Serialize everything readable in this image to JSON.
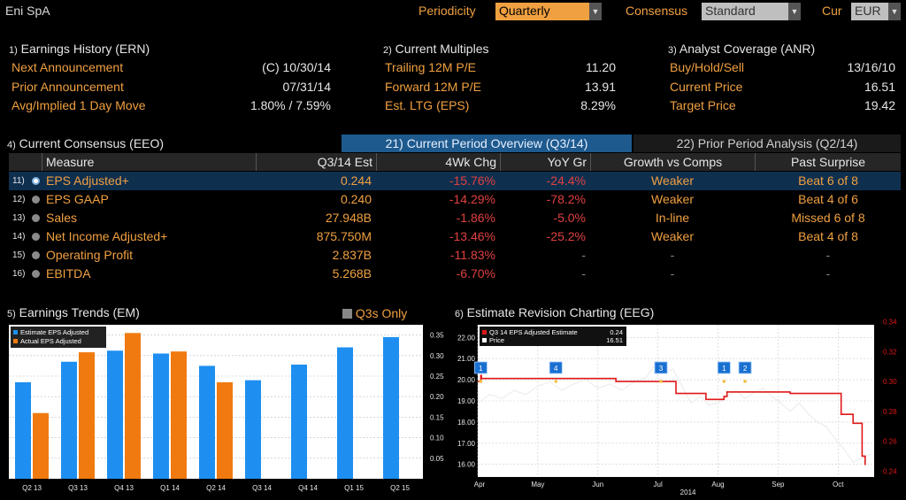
{
  "header": {
    "security": "Eni SpA",
    "periodicity_label": "Periodicity",
    "periodicity_value": "Quarterly",
    "consensus_label": "Consensus",
    "consensus_value": "Standard",
    "cur_label": "Cur",
    "cur_value": "EUR"
  },
  "earnings_history": {
    "num": "1)",
    "title": "Earnings History (ERN)",
    "rows": [
      {
        "label": "Next Announcement",
        "value": "(C)  10/30/14"
      },
      {
        "label": "Prior Announcement",
        "value": "07/31/14"
      },
      {
        "label": "Avg/Implied 1 Day Move",
        "value": "1.80% / 7.59%"
      }
    ]
  },
  "current_multiples": {
    "num": "2)",
    "title": "Current Multiples",
    "rows": [
      {
        "label": "Trailing 12M P/E",
        "value": "11.20"
      },
      {
        "label": "Forward 12M P/E",
        "value": "13.91"
      },
      {
        "label": "Est. LTG (EPS)",
        "value": "8.29%"
      }
    ]
  },
  "analyst_coverage": {
    "num": "3)",
    "title": "Analyst Coverage (ANR)",
    "rows": [
      {
        "label": "Buy/Hold/Sell",
        "value": "13/16/10"
      },
      {
        "label": "Current Price",
        "value": "16.51"
      },
      {
        "label": "Target Price",
        "value": "19.42"
      }
    ]
  },
  "consensus": {
    "num": "4)",
    "title": "Current Consensus (EEO)",
    "tab_active": "21) Current Period Overview (Q3/14)",
    "tab_inactive": "22) Prior Period Analysis (Q2/14)",
    "columns": [
      "Measure",
      "Q3/14 Est",
      "4Wk Chg",
      "YoY Gr",
      "Growth vs Comps",
      "Past Surprise"
    ],
    "rows": [
      {
        "num": "11)",
        "measure": "EPS Adjusted+",
        "est": "0.244",
        "chg": "-15.76%",
        "yoy": "-24.4%",
        "comp": "Weaker",
        "surprise": "Beat 6 of 8"
      },
      {
        "num": "12)",
        "measure": "EPS GAAP",
        "est": "0.240",
        "chg": "-14.29%",
        "yoy": "-78.2%",
        "comp": "Weaker",
        "surprise": "Beat 4 of 6"
      },
      {
        "num": "13)",
        "measure": "Sales",
        "est": "27.948B",
        "chg": "-1.86%",
        "yoy": "-5.0%",
        "comp": "In-line",
        "surprise": "Missed 6 of 8"
      },
      {
        "num": "14)",
        "measure": "Net Income Adjusted+",
        "est": "875.750M",
        "chg": "-13.46%",
        "yoy": "-25.2%",
        "comp": "Weaker",
        "surprise": "Beat 4 of 8"
      },
      {
        "num": "15)",
        "measure": "Operating Profit",
        "est": "2.837B",
        "chg": "-11.83%",
        "yoy": "-",
        "comp": "-",
        "surprise": "-"
      },
      {
        "num": "16)",
        "measure": "EBITDA",
        "est": "5.268B",
        "chg": "-6.70%",
        "yoy": "-",
        "comp": "-",
        "surprise": "-"
      }
    ]
  },
  "earnings_trends": {
    "num": "5)",
    "title": "Earnings Trends (EM)",
    "toggle_label": "Q3s Only"
  },
  "estimate_revision": {
    "num": "6)",
    "title": "Estimate Revision Charting (EEG)"
  },
  "colors": {
    "accent": "#f0a040",
    "negative": "#e04040",
    "estimate_bar": "#1e8ff0",
    "actual_bar": "#f07a10",
    "estimate_line": "#e01818",
    "price_line": "#ffffff",
    "marker": "#1a70d0"
  },
  "chart_data": [
    {
      "type": "bar",
      "categories": [
        "Q2 13",
        "Q3 13",
        "Q4 13",
        "Q1 14",
        "Q2 14",
        "Q3 14",
        "Q4 14",
        "Q1 15",
        "Q2 15"
      ],
      "series": [
        {
          "name": "Estimate EPS Adjusted",
          "values": [
            0.235,
            0.285,
            0.312,
            0.305,
            0.275,
            0.24,
            0.278,
            0.32,
            0.345
          ]
        },
        {
          "name": "Actual EPS Adjusted",
          "values": [
            0.16,
            0.308,
            0.355,
            0.31,
            0.235,
            null,
            null,
            null,
            null
          ]
        }
      ],
      "ylim": [
        0.0,
        0.375
      ],
      "yticks": [
        0.05,
        0.1,
        0.15,
        0.2,
        0.25,
        0.3,
        0.35
      ],
      "ytick_labels": [
        "0.05",
        "0.10",
        "0.15",
        "0.20",
        "0.25",
        "0.30",
        "0.35"
      ],
      "legend": "top-left",
      "grid": true
    },
    {
      "type": "line",
      "x_labels": [
        "Apr",
        "May",
        "Jun",
        "Jul",
        "Aug",
        "Sep",
        "Oct"
      ],
      "x_year": "2014",
      "x_range": [
        0,
        6.6
      ],
      "series": [
        {
          "name": "Q3 14 EPS Adjusted Estimate",
          "value_label": "0.24",
          "axis": "right",
          "x": [
            0.0,
            0.05,
            0.06,
            0.8,
            1.5,
            2.3,
            2.32,
            2.9,
            3.0,
            3.1,
            3.3,
            3.35,
            3.6,
            3.8,
            4.1,
            4.15,
            4.5,
            4.8,
            5.0,
            5.2,
            5.4,
            5.6,
            5.9,
            6.05,
            6.2,
            6.25,
            6.4,
            6.45
          ],
          "y": [
            0.3,
            0.304,
            0.302,
            0.302,
            0.302,
            0.3,
            0.3,
            0.3,
            0.3,
            0.3,
            0.292,
            0.292,
            0.292,
            0.288,
            0.29,
            0.293,
            0.293,
            0.293,
            0.293,
            0.292,
            0.292,
            0.292,
            0.292,
            0.278,
            0.278,
            0.272,
            0.25,
            0.244
          ]
        },
        {
          "name": "Price",
          "value_label": "16.51",
          "axis": "left",
          "x": [
            0.0,
            0.2,
            0.4,
            0.6,
            0.8,
            1.0,
            1.2,
            1.4,
            1.6,
            1.8,
            2.0,
            2.2,
            2.4,
            2.6,
            2.8,
            2.95,
            3.1,
            3.25,
            3.4,
            3.55,
            3.7,
            3.85,
            4.0,
            4.15,
            4.3,
            4.45,
            4.6,
            4.75,
            4.9,
            5.05,
            5.2,
            5.35,
            5.5,
            5.65,
            5.8,
            5.95,
            6.1,
            6.25,
            6.4,
            6.55
          ],
          "y": [
            18.9,
            19.3,
            19.1,
            19.5,
            19.3,
            19.7,
            19.9,
            19.5,
            19.8,
            20.0,
            19.6,
            19.8,
            19.5,
            19.9,
            20.1,
            20.7,
            20.3,
            20.5,
            19.7,
            18.9,
            19.2,
            18.8,
            18.9,
            19.2,
            19.5,
            19.1,
            19.4,
            19.6,
            19.2,
            18.9,
            18.5,
            18.9,
            18.4,
            18.0,
            17.8,
            17.2,
            16.7,
            16.1,
            16.3,
            16.5
          ]
        }
      ],
      "markers": [
        {
          "label": "1",
          "x": 0.05
        },
        {
          "label": "4",
          "x": 1.3
        },
        {
          "label": "3",
          "x": 3.05
        },
        {
          "label": "1",
          "x": 4.1
        },
        {
          "label": "2",
          "x": 4.45
        }
      ],
      "y_left_range": [
        15.4,
        22.6
      ],
      "y_left_ticks": [
        16.0,
        17.0,
        18.0,
        19.0,
        20.0,
        21.0,
        22.0
      ],
      "y_left_tick_labels": [
        "16.00",
        "17.00",
        "18.00",
        "19.00",
        "20.00",
        "21.00",
        "22.00"
      ],
      "y_right_range": [
        0.236,
        0.338
      ],
      "y_right_ticks": [
        0.24,
        0.26,
        0.28,
        0.3,
        0.32,
        0.34
      ],
      "y_right_tick_labels": [
        "0.24",
        "0.26",
        "0.28",
        "0.30",
        "0.32",
        "0.34"
      ],
      "legend": "top-left",
      "grid": true
    }
  ]
}
